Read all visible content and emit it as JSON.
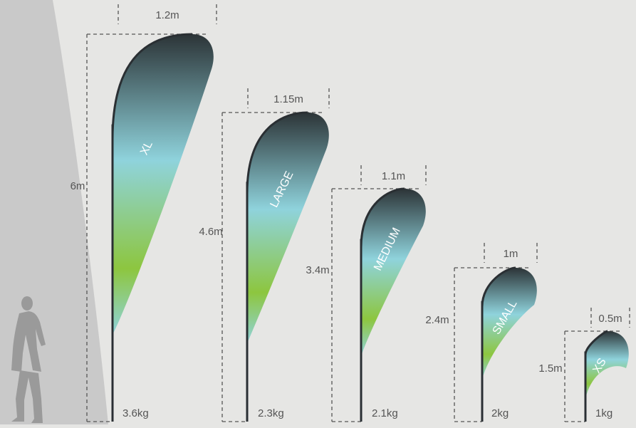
{
  "colors": {
    "background": "#e6e6e4",
    "wall": "#c9c9c9",
    "silhouette": "#9a9a9a",
    "pole": "#2a2f33",
    "guides": "#555555",
    "flag_top": "#2c3437",
    "flag_mid": "#8fd3dc",
    "flag_green": "#8dc63f"
  },
  "icons": {
    "person": "walking-person-silhouette-icon"
  },
  "flags": [
    {
      "label": "XL",
      "width": "1.2m",
      "height": "6m",
      "weight": "3.6kg"
    },
    {
      "label": "LARGE",
      "width": "1.15m",
      "height": "4.6m",
      "weight": "2.3kg"
    },
    {
      "label": "MEDIUM",
      "width": "1.1m",
      "height": "3.4m",
      "weight": "2.1kg"
    },
    {
      "label": "SMALL",
      "width": "1m",
      "height": "2.4m",
      "weight": "2kg"
    },
    {
      "label": "XS",
      "width": "0.5m",
      "height": "1.5m",
      "weight": "1kg"
    }
  ]
}
